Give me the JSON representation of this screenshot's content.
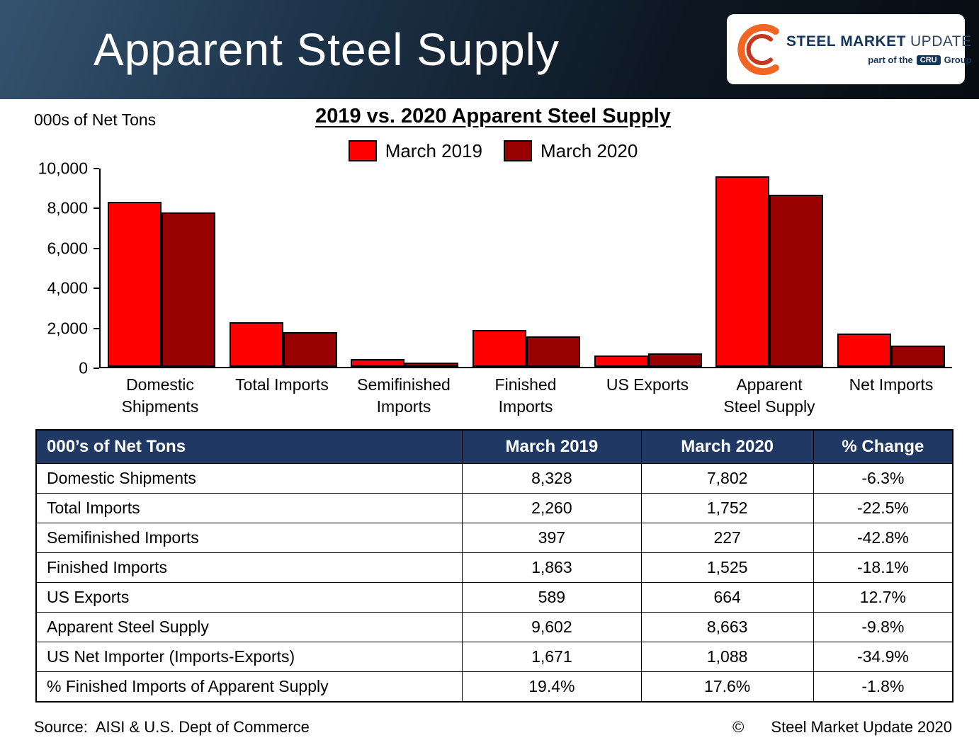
{
  "header": {
    "title": "Apparent Steel Supply",
    "logo": {
      "steel": "STEEL",
      "market": "MARKET",
      "update": "UPDATE",
      "tagline_prefix": "part of the",
      "tagline_cru": "CRU",
      "tagline_suffix": "Group"
    }
  },
  "chart": {
    "units_label": "000s of Net Tons",
    "title": "2019 vs. 2020 Apparent Steel Supply"
  },
  "chart_data": {
    "type": "bar",
    "title": "2019 vs. 2020 Apparent Steel Supply",
    "categories": [
      "Domestic\nShipments",
      "Total Imports",
      "Semifinished\nImports",
      "Finished\nImports",
      "US Exports",
      "Apparent\nSteel Supply",
      "Net Imports"
    ],
    "series": [
      {
        "name": "March 2019",
        "color": "#ff0000",
        "values": [
          8328,
          2260,
          397,
          1863,
          589,
          9602,
          1671
        ]
      },
      {
        "name": "March 2020",
        "color": "#990000",
        "values": [
          7802,
          1752,
          227,
          1525,
          664,
          8663,
          1088
        ]
      }
    ],
    "xlabel": "",
    "ylabel": "000s of Net Tons",
    "ylim": [
      0,
      10000
    ],
    "yticks": [
      0,
      2000,
      4000,
      6000,
      8000,
      10000
    ],
    "grid": false,
    "legend_position": "top"
  },
  "table": {
    "headers": [
      "000’s of Net Tons",
      "March 2019",
      "March 2020",
      "% Change"
    ],
    "rows": [
      {
        "label": "Domestic Shipments",
        "march_2019": "8,328",
        "march_2020": "7,802",
        "change": "-6.3%"
      },
      {
        "label": "Total Imports",
        "march_2019": "2,260",
        "march_2020": "1,752",
        "change": "-22.5%"
      },
      {
        "label": "Semifinished Imports",
        "march_2019": "397",
        "march_2020": "227",
        "change": "-42.8%"
      },
      {
        "label": "Finished Imports",
        "march_2019": "1,863",
        "march_2020": "1,525",
        "change": "-18.1%"
      },
      {
        "label": "US Exports",
        "march_2019": "589",
        "march_2020": "664",
        "change": "12.7%"
      },
      {
        "label": "Apparent Steel Supply",
        "march_2019": "9,602",
        "march_2020": "8,663",
        "change": "-9.8%"
      },
      {
        "label": "US Net Importer (Imports-Exports)",
        "march_2019": "1,671",
        "march_2020": "1,088",
        "change": "-34.9%"
      },
      {
        "label": "% Finished Imports of Apparent Supply",
        "march_2019": "19.4%",
        "march_2020": "17.6%",
        "change": "-1.8%"
      }
    ]
  },
  "footer": {
    "source": "Source:  AISI & U.S. Dept of Commerce",
    "copyright_symbol": "©",
    "copyright_text": "Steel Market Update 2020"
  }
}
